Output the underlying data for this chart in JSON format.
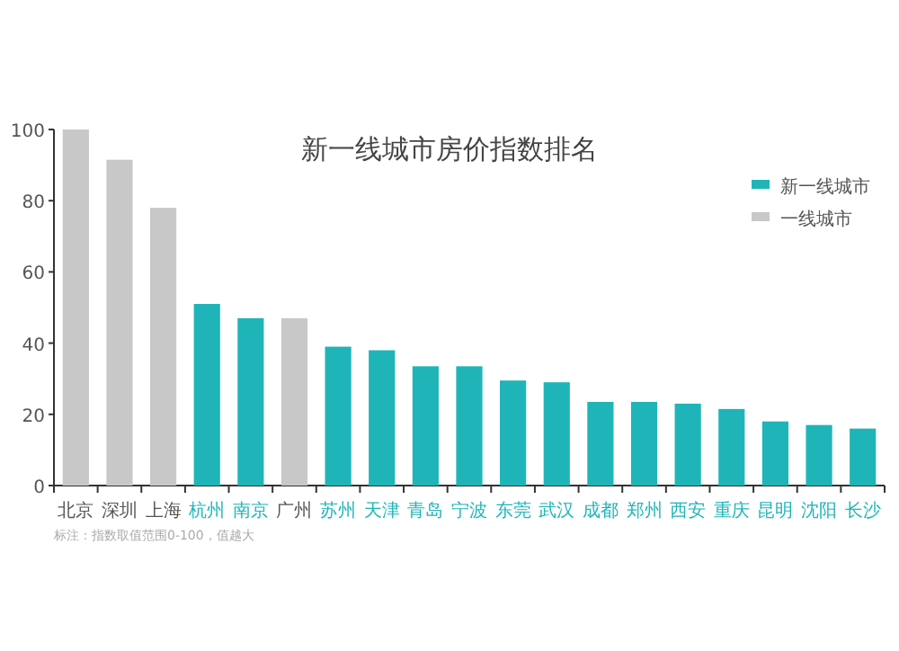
{
  "chart_data": {
    "type": "bar",
    "title": "新一线城市房价指数排名",
    "categories": [
      "北京",
      "深圳",
      "上海",
      "杭州",
      "南京",
      "广州",
      "苏州",
      "天津",
      "青岛",
      "宁波",
      "东莞",
      "武汉",
      "成都",
      "郑州",
      "西安",
      "重庆",
      "昆明",
      "沈阳",
      "长沙"
    ],
    "series": [
      {
        "name": "新一线城市",
        "color": "#1fb5b8",
        "values": [
          null,
          null,
          null,
          51,
          47,
          null,
          39,
          38,
          33.5,
          33.5,
          29.5,
          29,
          23.5,
          23.5,
          23,
          21.5,
          18,
          17,
          16
        ]
      },
      {
        "name": "一线城市",
        "color": "#c8c8c8",
        "values": [
          100,
          91.5,
          78,
          null,
          null,
          47,
          null,
          null,
          null,
          null,
          null,
          null,
          null,
          null,
          null,
          null,
          null,
          null,
          null
        ]
      }
    ],
    "ylim": [
      0,
      100
    ],
    "yticks": [
      0,
      20,
      40,
      60,
      80,
      100
    ],
    "grid": false,
    "legend": "top right",
    "annotations": [
      "标注：指数取值范围0-100，值越大"
    ]
  }
}
